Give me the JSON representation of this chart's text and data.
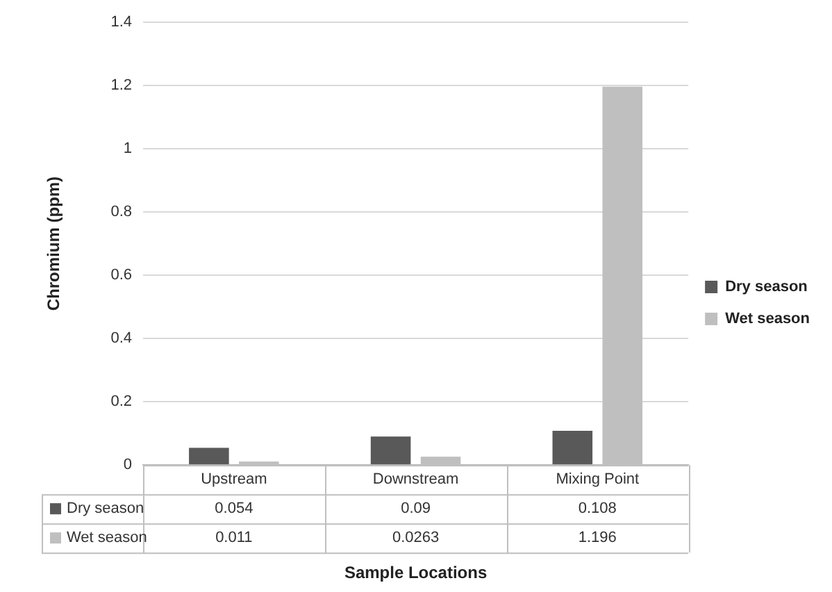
{
  "chart_data": {
    "type": "bar",
    "xlabel": "Sample Locations",
    "ylabel": "Chromium (ppm)",
    "categories": [
      "Upstream",
      "Downstream",
      "Mixing Point"
    ],
    "series": [
      {
        "name": "Dry season",
        "color": "#595959",
        "values": [
          0.054,
          0.09,
          0.108
        ]
      },
      {
        "name": "Wet season",
        "color": "#bfbfbf",
        "values": [
          0.011,
          0.0263,
          1.196
        ]
      }
    ],
    "ylim": [
      0,
      1.4
    ],
    "yticks": [
      0,
      0.2,
      0.4,
      0.6,
      0.8,
      1,
      1.2,
      1.4
    ],
    "grid": "y",
    "legend": "right",
    "data_labels": true
  }
}
